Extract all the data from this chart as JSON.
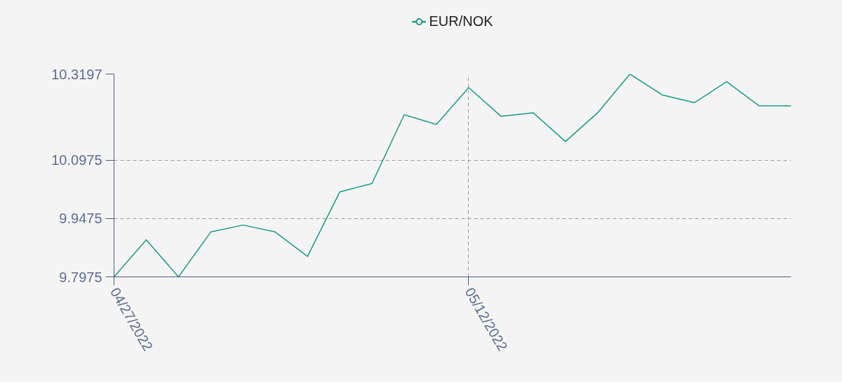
{
  "chart_data": {
    "type": "line",
    "categories": [
      "04/27/2022",
      null,
      null,
      null,
      null,
      null,
      null,
      null,
      null,
      null,
      null,
      "05/12/2022",
      null,
      null,
      null,
      null,
      null,
      null,
      null,
      null,
      null,
      null
    ],
    "series": [
      {
        "name": "EUR/NOK",
        "color": "#1a9a86",
        "values": [
          9.7975,
          9.893,
          9.7975,
          9.913,
          9.931,
          9.913,
          9.85,
          10.016,
          10.038,
          10.215,
          10.19,
          10.285,
          10.211,
          10.22,
          10.146,
          10.22,
          10.3197,
          10.266,
          10.246,
          10.3,
          10.238,
          10.238
        ]
      }
    ],
    "ylim": [
      9.7975,
      10.3197
    ],
    "yticks": [
      9.7975,
      9.9475,
      10.0975,
      10.3197
    ],
    "grid": true,
    "legend": "top"
  }
}
